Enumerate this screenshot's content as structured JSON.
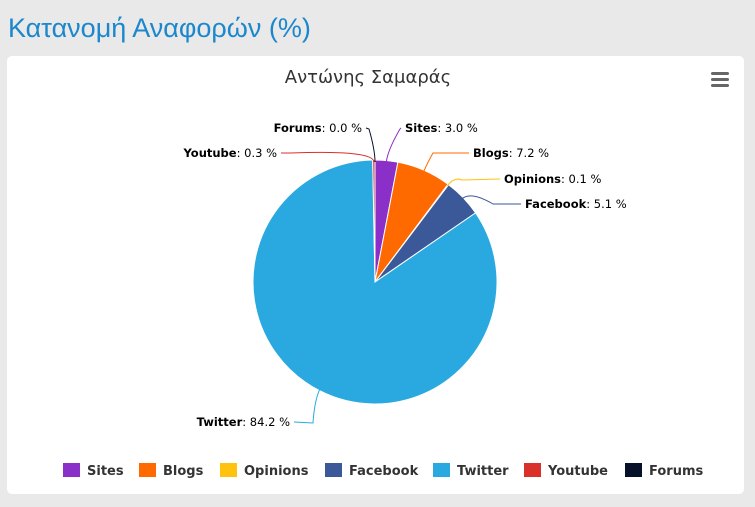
{
  "page": {
    "title": "Κατανομή Αναφορών (%)"
  },
  "colors": {
    "title": "#1b87cc",
    "menu_icon": "#666666",
    "Sites": "#8b2fc9",
    "Blogs": "#ff6a00",
    "Opinions": "#ffc20e",
    "Facebook": "#3b5998",
    "Twitter": "#29a9e0",
    "Youtube": "#d9302a",
    "Forums": "#07112a"
  },
  "menu": {
    "icon": "hamburger-menu-icon"
  },
  "chart_data": {
    "type": "pie",
    "title": "Αντώνης Σαμαράς",
    "unit_suffix": " %",
    "slices": [
      {
        "name": "Sites",
        "value": 3.0,
        "label_value": "3.0"
      },
      {
        "name": "Blogs",
        "value": 7.2,
        "label_value": "7.2"
      },
      {
        "name": "Opinions",
        "value": 0.1,
        "label_value": "0.1"
      },
      {
        "name": "Facebook",
        "value": 5.1,
        "label_value": "5.1"
      },
      {
        "name": "Twitter",
        "value": 84.2,
        "label_value": "84.2"
      },
      {
        "name": "Youtube",
        "value": 0.3,
        "label_value": "0.3"
      },
      {
        "name": "Forums",
        "value": 0.0,
        "label_value": "0.0"
      }
    ],
    "legend": [
      "Sites",
      "Blogs",
      "Opinions",
      "Facebook",
      "Twitter",
      "Youtube",
      "Forums"
    ],
    "legend_position": "bottom"
  }
}
